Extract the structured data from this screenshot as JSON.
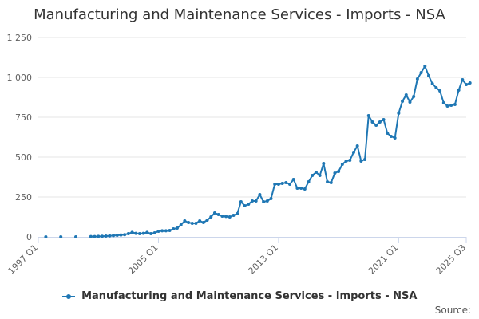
{
  "colors": {
    "series": "#1f77b4",
    "grid": "#e6e6e6",
    "axis": "#ccd6eb",
    "text": "#333333"
  },
  "chart_data": {
    "type": "line",
    "title": "Manufacturing and Maintenance Services - Imports - NSA",
    "xlabel": "",
    "ylabel": "",
    "ylim": [
      0,
      1250
    ],
    "yticks": [
      0,
      250,
      500,
      750,
      1000,
      1250
    ],
    "ytick_labels": [
      "0",
      "250",
      "500",
      "750",
      "1 000",
      "1 250"
    ],
    "xticks": [
      "1997 Q1",
      "2005 Q1",
      "2013 Q1",
      "2021 Q1",
      "2025 Q3"
    ],
    "grid": true,
    "legend": "bottom",
    "source_label": "Source:",
    "series": [
      {
        "name": "Manufacturing and Maintenance Services - Imports - NSA",
        "points": [
          [
            "1997 Q3",
            0
          ],
          [
            "1998 Q3",
            0
          ],
          [
            "1999 Q3",
            0
          ],
          [
            "2000 Q3",
            2
          ],
          [
            "2000 Q4",
            2
          ],
          [
            "2001 Q1",
            3
          ],
          [
            "2001 Q2",
            4
          ],
          [
            "2001 Q3",
            5
          ],
          [
            "2001 Q4",
            6
          ],
          [
            "2002 Q1",
            8
          ],
          [
            "2002 Q2",
            10
          ],
          [
            "2002 Q3",
            12
          ],
          [
            "2002 Q4",
            14
          ],
          [
            "2003 Q1",
            20
          ],
          [
            "2003 Q2",
            28
          ],
          [
            "2003 Q3",
            22
          ],
          [
            "2003 Q4",
            20
          ],
          [
            "2004 Q1",
            22
          ],
          [
            "2004 Q2",
            28
          ],
          [
            "2004 Q3",
            20
          ],
          [
            "2004 Q4",
            25
          ],
          [
            "2005 Q1",
            35
          ],
          [
            "2005 Q2",
            38
          ],
          [
            "2005 Q3",
            38
          ],
          [
            "2005 Q4",
            40
          ],
          [
            "2006 Q1",
            50
          ],
          [
            "2006 Q2",
            55
          ],
          [
            "2006 Q3",
            75
          ],
          [
            "2006 Q4",
            100
          ],
          [
            "2007 Q1",
            90
          ],
          [
            "2007 Q2",
            85
          ],
          [
            "2007 Q3",
            85
          ],
          [
            "2007 Q4",
            100
          ],
          [
            "2008 Q1",
            90
          ],
          [
            "2008 Q2",
            105
          ],
          [
            "2008 Q3",
            125
          ],
          [
            "2008 Q4",
            150
          ],
          [
            "2009 Q1",
            140
          ],
          [
            "2009 Q2",
            130
          ],
          [
            "2009 Q3",
            128
          ],
          [
            "2009 Q4",
            125
          ],
          [
            "2010 Q1",
            135
          ],
          [
            "2010 Q2",
            145
          ],
          [
            "2010 Q3",
            220
          ],
          [
            "2010 Q4",
            195
          ],
          [
            "2011 Q1",
            205
          ],
          [
            "2011 Q2",
            225
          ],
          [
            "2011 Q3",
            225
          ],
          [
            "2011 Q4",
            265
          ],
          [
            "2012 Q1",
            220
          ],
          [
            "2012 Q2",
            225
          ],
          [
            "2012 Q3",
            240
          ],
          [
            "2012 Q4",
            330
          ],
          [
            "2013 Q1",
            330
          ],
          [
            "2013 Q2",
            335
          ],
          [
            "2013 Q3",
            340
          ],
          [
            "2013 Q4",
            330
          ],
          [
            "2014 Q1",
            360
          ],
          [
            "2014 Q2",
            305
          ],
          [
            "2014 Q3",
            305
          ],
          [
            "2014 Q4",
            300
          ],
          [
            "2015 Q1",
            345
          ],
          [
            "2015 Q2",
            385
          ],
          [
            "2015 Q3",
            405
          ],
          [
            "2015 Q4",
            385
          ],
          [
            "2016 Q1",
            460
          ],
          [
            "2016 Q2",
            345
          ],
          [
            "2016 Q3",
            340
          ],
          [
            "2016 Q4",
            400
          ],
          [
            "2017 Q1",
            410
          ],
          [
            "2017 Q2",
            455
          ],
          [
            "2017 Q3",
            475
          ],
          [
            "2017 Q4",
            480
          ],
          [
            "2018 Q1",
            530
          ],
          [
            "2018 Q2",
            570
          ],
          [
            "2018 Q3",
            475
          ],
          [
            "2018 Q4",
            485
          ],
          [
            "2019 Q1",
            760
          ],
          [
            "2019 Q2",
            720
          ],
          [
            "2019 Q3",
            700
          ],
          [
            "2019 Q4",
            720
          ],
          [
            "2020 Q1",
            735
          ],
          [
            "2020 Q2",
            650
          ],
          [
            "2020 Q3",
            630
          ],
          [
            "2020 Q4",
            620
          ],
          [
            "2021 Q1",
            775
          ],
          [
            "2021 Q2",
            850
          ],
          [
            "2021 Q3",
            890
          ],
          [
            "2021 Q4",
            845
          ],
          [
            "2022 Q1",
            880
          ],
          [
            "2022 Q2",
            990
          ],
          [
            "2022 Q3",
            1030
          ],
          [
            "2022 Q4",
            1070
          ],
          [
            "2023 Q1",
            1010
          ],
          [
            "2023 Q2",
            960
          ],
          [
            "2023 Q3",
            935
          ],
          [
            "2023 Q4",
            915
          ],
          [
            "2024 Q1",
            840
          ],
          [
            "2024 Q2",
            820
          ],
          [
            "2024 Q3",
            825
          ],
          [
            "2024 Q4",
            830
          ],
          [
            "2025 Q1",
            920
          ],
          [
            "2025 Q2",
            985
          ],
          [
            "2025 Q3",
            955
          ],
          [
            "2025 Q4",
            965
          ]
        ]
      }
    ]
  }
}
